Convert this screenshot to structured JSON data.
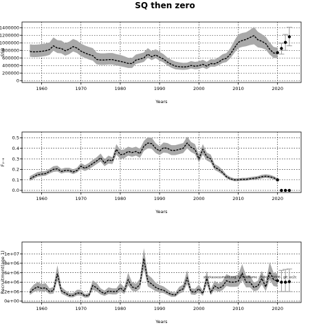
{
  "title": "SQ then zero",
  "chart_data": [
    {
      "type": "line",
      "xlabel": "Years",
      "ylabel": "SSB",
      "xlim": [
        1955,
        2026
      ],
      "ylim": [
        -50000,
        1550000
      ],
      "xticks": [
        1960,
        1970,
        1980,
        1990,
        2000,
        2010,
        2020
      ],
      "yticks": [
        0,
        200000,
        400000,
        600000,
        800000,
        1000000,
        1200000,
        1400000
      ],
      "grid": true,
      "series": [
        {
          "role": "estimate",
          "x": [
            1957,
            1958,
            1959,
            1960,
            1961,
            1962,
            1963,
            1964,
            1965,
            1966,
            1967,
            1968,
            1969,
            1970,
            1971,
            1972,
            1973,
            1974,
            1975,
            1976,
            1977,
            1978,
            1979,
            1980,
            1981,
            1982,
            1983,
            1984,
            1985,
            1986,
            1987,
            1988,
            1989,
            1990,
            1991,
            1992,
            1993,
            1994,
            1995,
            1996,
            1997,
            1998,
            1999,
            2000,
            2001,
            2002,
            2003,
            2004,
            2005,
            2006,
            2007,
            2008,
            2009,
            2010,
            2011,
            2012,
            2013,
            2014,
            2015,
            2016,
            2017,
            2018,
            2019,
            2020
          ],
          "y": [
            770000,
            760000,
            765000,
            775000,
            790000,
            820000,
            920000,
            860000,
            850000,
            790000,
            830000,
            900000,
            860000,
            780000,
            730000,
            690000,
            660000,
            560000,
            545000,
            545000,
            555000,
            555000,
            530000,
            510000,
            485000,
            455000,
            450000,
            545000,
            570000,
            600000,
            700000,
            630000,
            680000,
            620000,
            570000,
            490000,
            430000,
            385000,
            370000,
            360000,
            365000,
            400000,
            380000,
            395000,
            430000,
            385000,
            450000,
            445000,
            490000,
            560000,
            590000,
            700000,
            860000,
            1010000,
            1060000,
            1090000,
            1140000,
            1190000,
            1080000,
            1040000,
            980000,
            830000,
            730000,
            720000
          ],
          "lower": [
            630000,
            620000,
            625000,
            635000,
            650000,
            680000,
            790000,
            730000,
            720000,
            660000,
            700000,
            770000,
            730000,
            650000,
            600000,
            560000,
            530000,
            430000,
            415000,
            415000,
            425000,
            425000,
            400000,
            380000,
            360000,
            335000,
            335000,
            440000,
            465000,
            495000,
            605000,
            540000,
            590000,
            530000,
            480000,
            400000,
            340000,
            300000,
            290000,
            285000,
            290000,
            320000,
            300000,
            310000,
            345000,
            305000,
            370000,
            365000,
            405000,
            465000,
            490000,
            590000,
            730000,
            860000,
            890000,
            910000,
            940000,
            960000,
            880000,
            860000,
            820000,
            690000,
            600000,
            590000
          ],
          "upper": [
            960000,
            950000,
            955000,
            965000,
            980000,
            1010000,
            1140000,
            1070000,
            1060000,
            990000,
            1030000,
            1100000,
            1060000,
            980000,
            930000,
            890000,
            860000,
            740000,
            720000,
            720000,
            730000,
            730000,
            700000,
            680000,
            645000,
            605000,
            600000,
            690000,
            715000,
            745000,
            860000,
            780000,
            830000,
            760000,
            700000,
            610000,
            550000,
            505000,
            485000,
            470000,
            475000,
            515000,
            495000,
            510000,
            550000,
            495000,
            565000,
            560000,
            615000,
            695000,
            730000,
            860000,
            1050000,
            1220000,
            1260000,
            1280000,
            1340000,
            1420000,
            1290000,
            1230000,
            1160000,
            1010000,
            890000,
            870000
          ]
        },
        {
          "role": "forecast",
          "x": [
            2020,
            2021,
            2022,
            2023
          ],
          "y": [
            740000,
            850000,
            1010000,
            1160000
          ],
          "lower": [
            640000,
            700000,
            800000,
            920000
          ],
          "upper": [
            830000,
            990000,
            1220000,
            1410000
          ]
        }
      ]
    },
    {
      "type": "line",
      "xlabel": "Years",
      "ylabel": "F₂₋₆",
      "xlim": [
        1955,
        2026
      ],
      "ylim": [
        -0.02,
        0.555
      ],
      "xticks": [
        1960,
        1970,
        1980,
        1990,
        2000,
        2010,
        2020
      ],
      "yticks": [
        0.0,
        0.1,
        0.2,
        0.3,
        0.4,
        0.5
      ],
      "yticklabels": [
        "0.0",
        "0.1",
        "0.2",
        "0.3",
        "0.4",
        "0.5"
      ],
      "grid": true,
      "series": [
        {
          "role": "estimate",
          "x": [
            1957,
            1958,
            1959,
            1960,
            1961,
            1962,
            1963,
            1964,
            1965,
            1966,
            1967,
            1968,
            1969,
            1970,
            1971,
            1972,
            1973,
            1974,
            1975,
            1976,
            1977,
            1978,
            1979,
            1980,
            1981,
            1982,
            1983,
            1984,
            1985,
            1986,
            1987,
            1988,
            1989,
            1990,
            1991,
            1992,
            1993,
            1994,
            1995,
            1996,
            1997,
            1998,
            1999,
            2000,
            2001,
            2002,
            2003,
            2004,
            2005,
            2006,
            2007,
            2008,
            2009,
            2010,
            2011,
            2012,
            2013,
            2014,
            2015,
            2016,
            2017,
            2018,
            2019,
            2020
          ],
          "y": [
            0.11,
            0.13,
            0.15,
            0.155,
            0.16,
            0.18,
            0.2,
            0.205,
            0.18,
            0.19,
            0.19,
            0.175,
            0.19,
            0.23,
            0.21,
            0.23,
            0.255,
            0.28,
            0.31,
            0.26,
            0.29,
            0.28,
            0.39,
            0.34,
            0.345,
            0.37,
            0.36,
            0.37,
            0.35,
            0.42,
            0.45,
            0.445,
            0.4,
            0.375,
            0.405,
            0.4,
            0.38,
            0.38,
            0.39,
            0.4,
            0.45,
            0.41,
            0.39,
            0.3,
            0.39,
            0.32,
            0.3,
            0.22,
            0.2,
            0.17,
            0.13,
            0.11,
            0.1,
            0.1,
            0.105,
            0.105,
            0.11,
            0.115,
            0.12,
            0.13,
            0.135,
            0.13,
            0.12,
            0.1
          ],
          "lower": [
            0.09,
            0.11,
            0.13,
            0.135,
            0.14,
            0.16,
            0.175,
            0.18,
            0.16,
            0.17,
            0.17,
            0.155,
            0.17,
            0.2,
            0.185,
            0.2,
            0.225,
            0.25,
            0.275,
            0.23,
            0.255,
            0.25,
            0.34,
            0.3,
            0.305,
            0.33,
            0.32,
            0.33,
            0.31,
            0.375,
            0.4,
            0.395,
            0.355,
            0.335,
            0.36,
            0.355,
            0.335,
            0.335,
            0.345,
            0.355,
            0.4,
            0.365,
            0.345,
            0.265,
            0.34,
            0.285,
            0.265,
            0.195,
            0.175,
            0.15,
            0.115,
            0.097,
            0.088,
            0.088,
            0.092,
            0.092,
            0.097,
            0.101,
            0.105,
            0.114,
            0.118,
            0.114,
            0.105,
            0.088
          ],
          "upper": [
            0.135,
            0.155,
            0.175,
            0.18,
            0.185,
            0.205,
            0.23,
            0.235,
            0.205,
            0.215,
            0.215,
            0.2,
            0.215,
            0.26,
            0.24,
            0.26,
            0.29,
            0.315,
            0.35,
            0.295,
            0.33,
            0.315,
            0.44,
            0.385,
            0.39,
            0.415,
            0.405,
            0.415,
            0.395,
            0.47,
            0.505,
            0.5,
            0.45,
            0.42,
            0.455,
            0.45,
            0.43,
            0.43,
            0.44,
            0.45,
            0.51,
            0.46,
            0.44,
            0.34,
            0.44,
            0.36,
            0.34,
            0.25,
            0.23,
            0.195,
            0.15,
            0.127,
            0.115,
            0.115,
            0.12,
            0.12,
            0.126,
            0.131,
            0.137,
            0.148,
            0.153,
            0.148,
            0.137,
            0.115
          ]
        },
        {
          "role": "forecast",
          "x": [
            2020,
            2021,
            2022,
            2023
          ],
          "y": [
            0.1,
            0.0,
            0.0,
            0.0
          ],
          "lower": [
            0.1,
            0.0,
            0.0,
            0.0
          ],
          "upper": [
            0.1,
            0.0,
            0.0,
            0.0
          ]
        }
      ]
    },
    {
      "type": "line",
      "xlabel": "Years",
      "ylabel": "Recruitment(age 1)",
      "xlim": [
        1955,
        2026
      ],
      "ylim": [
        -0.3,
        12.5
      ],
      "y_unit": "1e+06",
      "xticks": [
        1960,
        1970,
        1980,
        1990,
        2000,
        2010,
        2020
      ],
      "yticks": [
        0,
        2,
        4,
        6,
        8,
        10
      ],
      "yticklabels": [
        "0e+00",
        "2e+06",
        "4e+06",
        "6e+06",
        "8e+06",
        "1e+07"
      ],
      "grid": true,
      "annotation": "stockassessment.org, FitTreeName : Pollock_5606 , git: ec2c",
      "series": [
        {
          "role": "estimate",
          "x": [
            1957,
            1958,
            1959,
            1960,
            1961,
            1962,
            1963,
            1964,
            1965,
            1966,
            1967,
            1968,
            1969,
            1970,
            1971,
            1972,
            1973,
            1974,
            1975,
            1976,
            1977,
            1978,
            1979,
            1980,
            1981,
            1982,
            1983,
            1984,
            1985,
            1986,
            1987,
            1988,
            1989,
            1990,
            1991,
            1992,
            1993,
            1994,
            1995,
            1996,
            1997,
            1998,
            1999,
            2000,
            2001,
            2002,
            2003,
            2004,
            2005,
            2006,
            2007,
            2008,
            2009,
            2010,
            2011,
            2012,
            2013,
            2014,
            2015,
            2016,
            2017,
            2018,
            2019,
            2020
          ],
          "y": [
            1.8,
            2.6,
            3.0,
            2.7,
            2.8,
            2.0,
            2.2,
            5.8,
            2.2,
            1.7,
            1.2,
            1.2,
            1.7,
            1.7,
            1.1,
            1.2,
            3.3,
            2.8,
            2.0,
            1.6,
            2.1,
            2.0,
            2.0,
            2.8,
            2.1,
            4.5,
            3.0,
            2.7,
            3.5,
            9.0,
            4.2,
            3.6,
            2.9,
            2.5,
            2.3,
            1.8,
            1.4,
            1.3,
            2.2,
            2.6,
            4.9,
            2.0,
            1.9,
            2.6,
            1.6,
            4.8,
            1.8,
            3.2,
            2.7,
            3.1,
            4.3,
            4.0,
            4.0,
            4.2,
            5.9,
            4.0,
            4.0,
            2.9,
            3.2,
            4.8,
            3.0,
            6.2,
            4.5,
            4.3
          ],
          "lower": [
            1.3,
            1.9,
            2.2,
            2.0,
            2.1,
            1.5,
            1.6,
            4.3,
            1.6,
            1.2,
            0.8,
            0.8,
            1.2,
            1.2,
            0.7,
            0.8,
            2.4,
            2.0,
            1.4,
            1.1,
            1.5,
            1.4,
            1.4,
            2.0,
            1.5,
            3.3,
            2.2,
            2.0,
            2.6,
            6.8,
            3.1,
            2.6,
            2.1,
            1.8,
            1.7,
            1.3,
            0.9,
            0.9,
            1.6,
            1.9,
            3.6,
            1.4,
            1.3,
            1.9,
            1.1,
            3.5,
            1.3,
            2.3,
            2.0,
            2.3,
            3.2,
            3.0,
            3.0,
            3.1,
            4.4,
            2.9,
            2.9,
            2.1,
            2.3,
            3.5,
            2.1,
            4.5,
            3.2,
            3.0
          ],
          "upper": [
            2.5,
            3.5,
            4.0,
            3.6,
            3.8,
            2.7,
            3.0,
            7.6,
            3.0,
            2.3,
            1.7,
            1.7,
            2.4,
            2.4,
            1.5,
            1.7,
            4.4,
            3.8,
            2.7,
            2.2,
            2.9,
            2.7,
            2.7,
            3.8,
            2.9,
            6.0,
            4.0,
            3.7,
            4.7,
            11.2,
            5.6,
            4.9,
            3.9,
            3.4,
            3.1,
            2.5,
            1.9,
            1.8,
            3.0,
            3.5,
            6.5,
            2.7,
            2.6,
            3.5,
            2.2,
            6.4,
            2.5,
            4.3,
            3.7,
            4.2,
            5.7,
            5.3,
            5.3,
            5.6,
            7.8,
            5.4,
            5.4,
            3.9,
            4.3,
            6.4,
            4.1,
            8.2,
            6.0,
            5.8
          ]
        },
        {
          "role": "forecast",
          "x": [
            2020,
            2021,
            2022,
            2023
          ],
          "y": [
            4.3,
            4.0,
            4.0,
            4.1
          ],
          "lower": [
            2.5,
            2.0,
            2.0,
            2.0
          ],
          "upper": [
            6.0,
            6.5,
            6.7,
            6.8
          ]
        }
      ]
    }
  ]
}
